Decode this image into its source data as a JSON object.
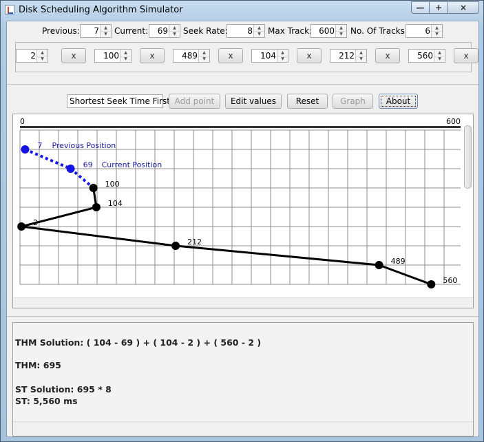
{
  "window": {
    "title": "Disk Scheduling Algorithm Simulator",
    "buttons": {
      "minimize": "—",
      "maximize": "+",
      "close": "×"
    }
  },
  "settings": {
    "previous_label": "Previous:",
    "previous_value": "7",
    "current_label": "Current:",
    "current_value": "69",
    "seek_rate_label": "Seek Rate:",
    "seek_rate_value": "8",
    "max_track_label": "Max Track:",
    "max_track_value": "600",
    "num_tracks_label": "No. Of Tracks:",
    "num_tracks_value": "6"
  },
  "tracks": [
    {
      "value": "2",
      "remove_label": "x"
    },
    {
      "value": "100",
      "remove_label": "x"
    },
    {
      "value": "489",
      "remove_label": "x"
    },
    {
      "value": "104",
      "remove_label": "x"
    },
    {
      "value": "212",
      "remove_label": "x"
    },
    {
      "value": "560",
      "remove_label": "x"
    }
  ],
  "controls": {
    "algorithm": "Shortest Seek Time First",
    "add_point": "Add point",
    "edit_values": "Edit values",
    "reset": "Reset",
    "graph": "Graph",
    "about": "About"
  },
  "chart_data": {
    "type": "line",
    "axis_min_label": "0",
    "axis_max_label": "600",
    "xlim": [
      0,
      600
    ],
    "previous": {
      "track": 7,
      "label": "7",
      "caption": "Previous Position"
    },
    "current": {
      "track": 69,
      "label": "69",
      "caption": "Current Position"
    },
    "sequence": [
      {
        "track": 100,
        "label": "100"
      },
      {
        "track": 104,
        "label": "104"
      },
      {
        "track": 2,
        "label": "2"
      },
      {
        "track": 212,
        "label": "212"
      },
      {
        "track": 489,
        "label": "489"
      },
      {
        "track": 560,
        "label": "560"
      }
    ],
    "colors": {
      "head": "#1414e6",
      "path": "#000000",
      "grid": "#8c8c8c"
    }
  },
  "results": {
    "thm_solution": "THM Solution: ( 104 - 69 ) + ( 104 - 2 ) + ( 560 - 2 )",
    "thm": "THM: 695",
    "st_solution": "ST Solution: 695 * 8",
    "st": "ST: 5,560 ms"
  }
}
